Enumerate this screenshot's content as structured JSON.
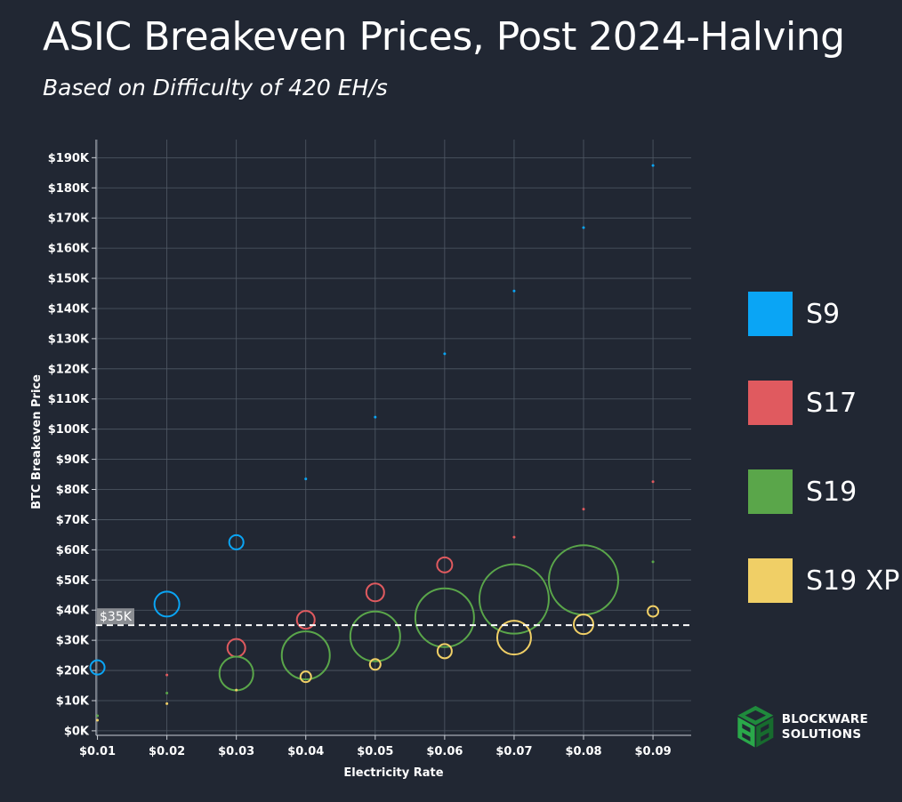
{
  "title": "ASIC Breakeven Prices, Post 2024-Halving",
  "subtitle": "Based on Difficulty of 420 EH/s",
  "legend": [
    {
      "label": "S9",
      "color": "#0aa5f5"
    },
    {
      "label": "S17",
      "color": "#e05a5f"
    },
    {
      "label": "S19",
      "color": "#5aa64a"
    },
    {
      "label": "S19 XP",
      "color": "#f0cf66"
    }
  ],
  "brand": {
    "line1": "BLOCKWARE",
    "line2": "SOLUTIONS"
  },
  "chart_data": {
    "type": "scatter",
    "title": "ASIC Breakeven Prices, Post 2024-Halving",
    "subtitle": "Based on Difficulty of 420 EH/s",
    "xlabel": "Electricity Rate",
    "ylabel": "BTC Breakeven Price",
    "xlim": [
      0.0098,
      0.0955
    ],
    "ylim": [
      -1500,
      196000
    ],
    "x_ticks": [
      0.01,
      0.02,
      0.03,
      0.04,
      0.05,
      0.06,
      0.07,
      0.08,
      0.09
    ],
    "x_tick_labels": [
      "$0.01",
      "$0.02",
      "$0.03",
      "$0.04",
      "$0.05",
      "$0.06",
      "$0.07",
      "$0.08",
      "$0.09"
    ],
    "y_ticks": [
      0,
      10000,
      20000,
      30000,
      40000,
      50000,
      60000,
      70000,
      80000,
      90000,
      100000,
      110000,
      120000,
      130000,
      140000,
      150000,
      160000,
      170000,
      180000,
      190000
    ],
    "y_tick_labels": [
      "$0K",
      "$10K",
      "$20K",
      "$30K",
      "$40K",
      "$50K",
      "$60K",
      "$70K",
      "$80K",
      "$90K",
      "$100K",
      "$110K",
      "$120K",
      "$130K",
      "$140K",
      "$150K",
      "$160K",
      "$170K",
      "$180K",
      "$190K"
    ],
    "grid": true,
    "reference_line": {
      "y": 35000,
      "label": "$35K"
    },
    "series": [
      {
        "name": "S9",
        "color": "#0aa5f5",
        "points": [
          {
            "x": 0.01,
            "y": 21000,
            "size": 8
          },
          {
            "x": 0.02,
            "y": 42000,
            "size": 14
          },
          {
            "x": 0.03,
            "y": 62500,
            "size": 8
          },
          {
            "x": 0.04,
            "y": 83500,
            "size": 1.5
          },
          {
            "x": 0.05,
            "y": 104000,
            "size": 1.5
          },
          {
            "x": 0.06,
            "y": 125000,
            "size": 1.5
          },
          {
            "x": 0.07,
            "y": 145800,
            "size": 1.5
          },
          {
            "x": 0.08,
            "y": 166800,
            "size": 1.5
          },
          {
            "x": 0.09,
            "y": 187400,
            "size": 1.5
          }
        ]
      },
      {
        "name": "S17",
        "color": "#e05a5f",
        "points": [
          {
            "x": 0.02,
            "y": 18500,
            "size": 1.5
          },
          {
            "x": 0.03,
            "y": 27500,
            "size": 10
          },
          {
            "x": 0.04,
            "y": 36800,
            "size": 10
          },
          {
            "x": 0.05,
            "y": 45900,
            "size": 10
          },
          {
            "x": 0.06,
            "y": 55000,
            "size": 8.5
          },
          {
            "x": 0.07,
            "y": 64200,
            "size": 1.5
          },
          {
            "x": 0.08,
            "y": 73500,
            "size": 1.5
          },
          {
            "x": 0.09,
            "y": 82600,
            "size": 1.5
          }
        ]
      },
      {
        "name": "S19",
        "color": "#5aa64a",
        "points": [
          {
            "x": 0.01,
            "y": 5000,
            "size": 1.5
          },
          {
            "x": 0.02,
            "y": 12500,
            "size": 1.5
          },
          {
            "x": 0.03,
            "y": 19000,
            "size": 19
          },
          {
            "x": 0.04,
            "y": 25000,
            "size": 27
          },
          {
            "x": 0.05,
            "y": 31300,
            "size": 28
          },
          {
            "x": 0.06,
            "y": 37500,
            "size": 33
          },
          {
            "x": 0.07,
            "y": 43700,
            "size": 39
          },
          {
            "x": 0.08,
            "y": 50000,
            "size": 39
          },
          {
            "x": 0.09,
            "y": 56000,
            "size": 1.5
          }
        ]
      },
      {
        "name": "S19 XP",
        "color": "#f0cf66",
        "points": [
          {
            "x": 0.01,
            "y": 3500,
            "size": 1.5
          },
          {
            "x": 0.02,
            "y": 9000,
            "size": 1.5
          },
          {
            "x": 0.03,
            "y": 13500,
            "size": 1.5
          },
          {
            "x": 0.04,
            "y": 17900,
            "size": 6
          },
          {
            "x": 0.05,
            "y": 22000,
            "size": 6
          },
          {
            "x": 0.06,
            "y": 26400,
            "size": 8
          },
          {
            "x": 0.07,
            "y": 30900,
            "size": 19
          },
          {
            "x": 0.08,
            "y": 35300,
            "size": 11
          },
          {
            "x": 0.09,
            "y": 39600,
            "size": 6
          }
        ]
      }
    ]
  }
}
